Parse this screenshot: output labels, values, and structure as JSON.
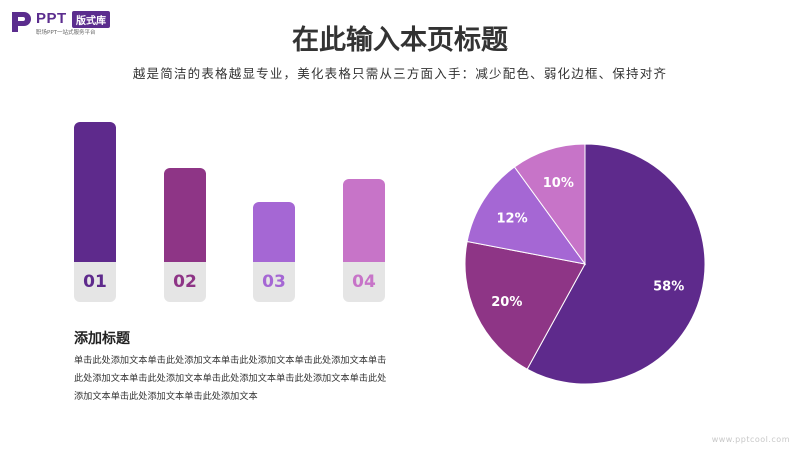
{
  "logo": {
    "ppt": "PPT",
    "badge": "版式库",
    "tagline": "职场PPT一站式服务平台"
  },
  "header": {
    "title": "在此输入本页标题",
    "subtitle": "越是简洁的表格越显专业，美化表格只需从三方面入手：减少配色、弱化边框、保持对齐"
  },
  "bars": [
    {
      "label": "01",
      "level": 1.0,
      "color": "#5e2a8c"
    },
    {
      "label": "02",
      "level": 0.67,
      "color": "#8e3586"
    },
    {
      "label": "03",
      "level": 0.43,
      "color": "#a567d4"
    },
    {
      "label": "04",
      "level": 0.59,
      "color": "#c774c8"
    }
  ],
  "caption": {
    "title": "添加标题",
    "body": "单击此处添加文本单击此处添加文本单击此处添加文本单击此处添加文本单击此处添加文本单击此处添加文本单击此处添加文本单击此处添加文本单击此处添加文本单击此处添加文本单击此处添加文本"
  },
  "chart_data": {
    "type": "pie",
    "slices": [
      {
        "label": "58%",
        "value": 58,
        "color": "#5e2a8c"
      },
      {
        "label": "20%",
        "value": 20,
        "color": "#8e3586"
      },
      {
        "label": "12%",
        "value": 12,
        "color": "#a567d4"
      },
      {
        "label": "10%",
        "value": 10,
        "color": "#c774c8"
      }
    ]
  },
  "watermark": "www.pptcool.com"
}
